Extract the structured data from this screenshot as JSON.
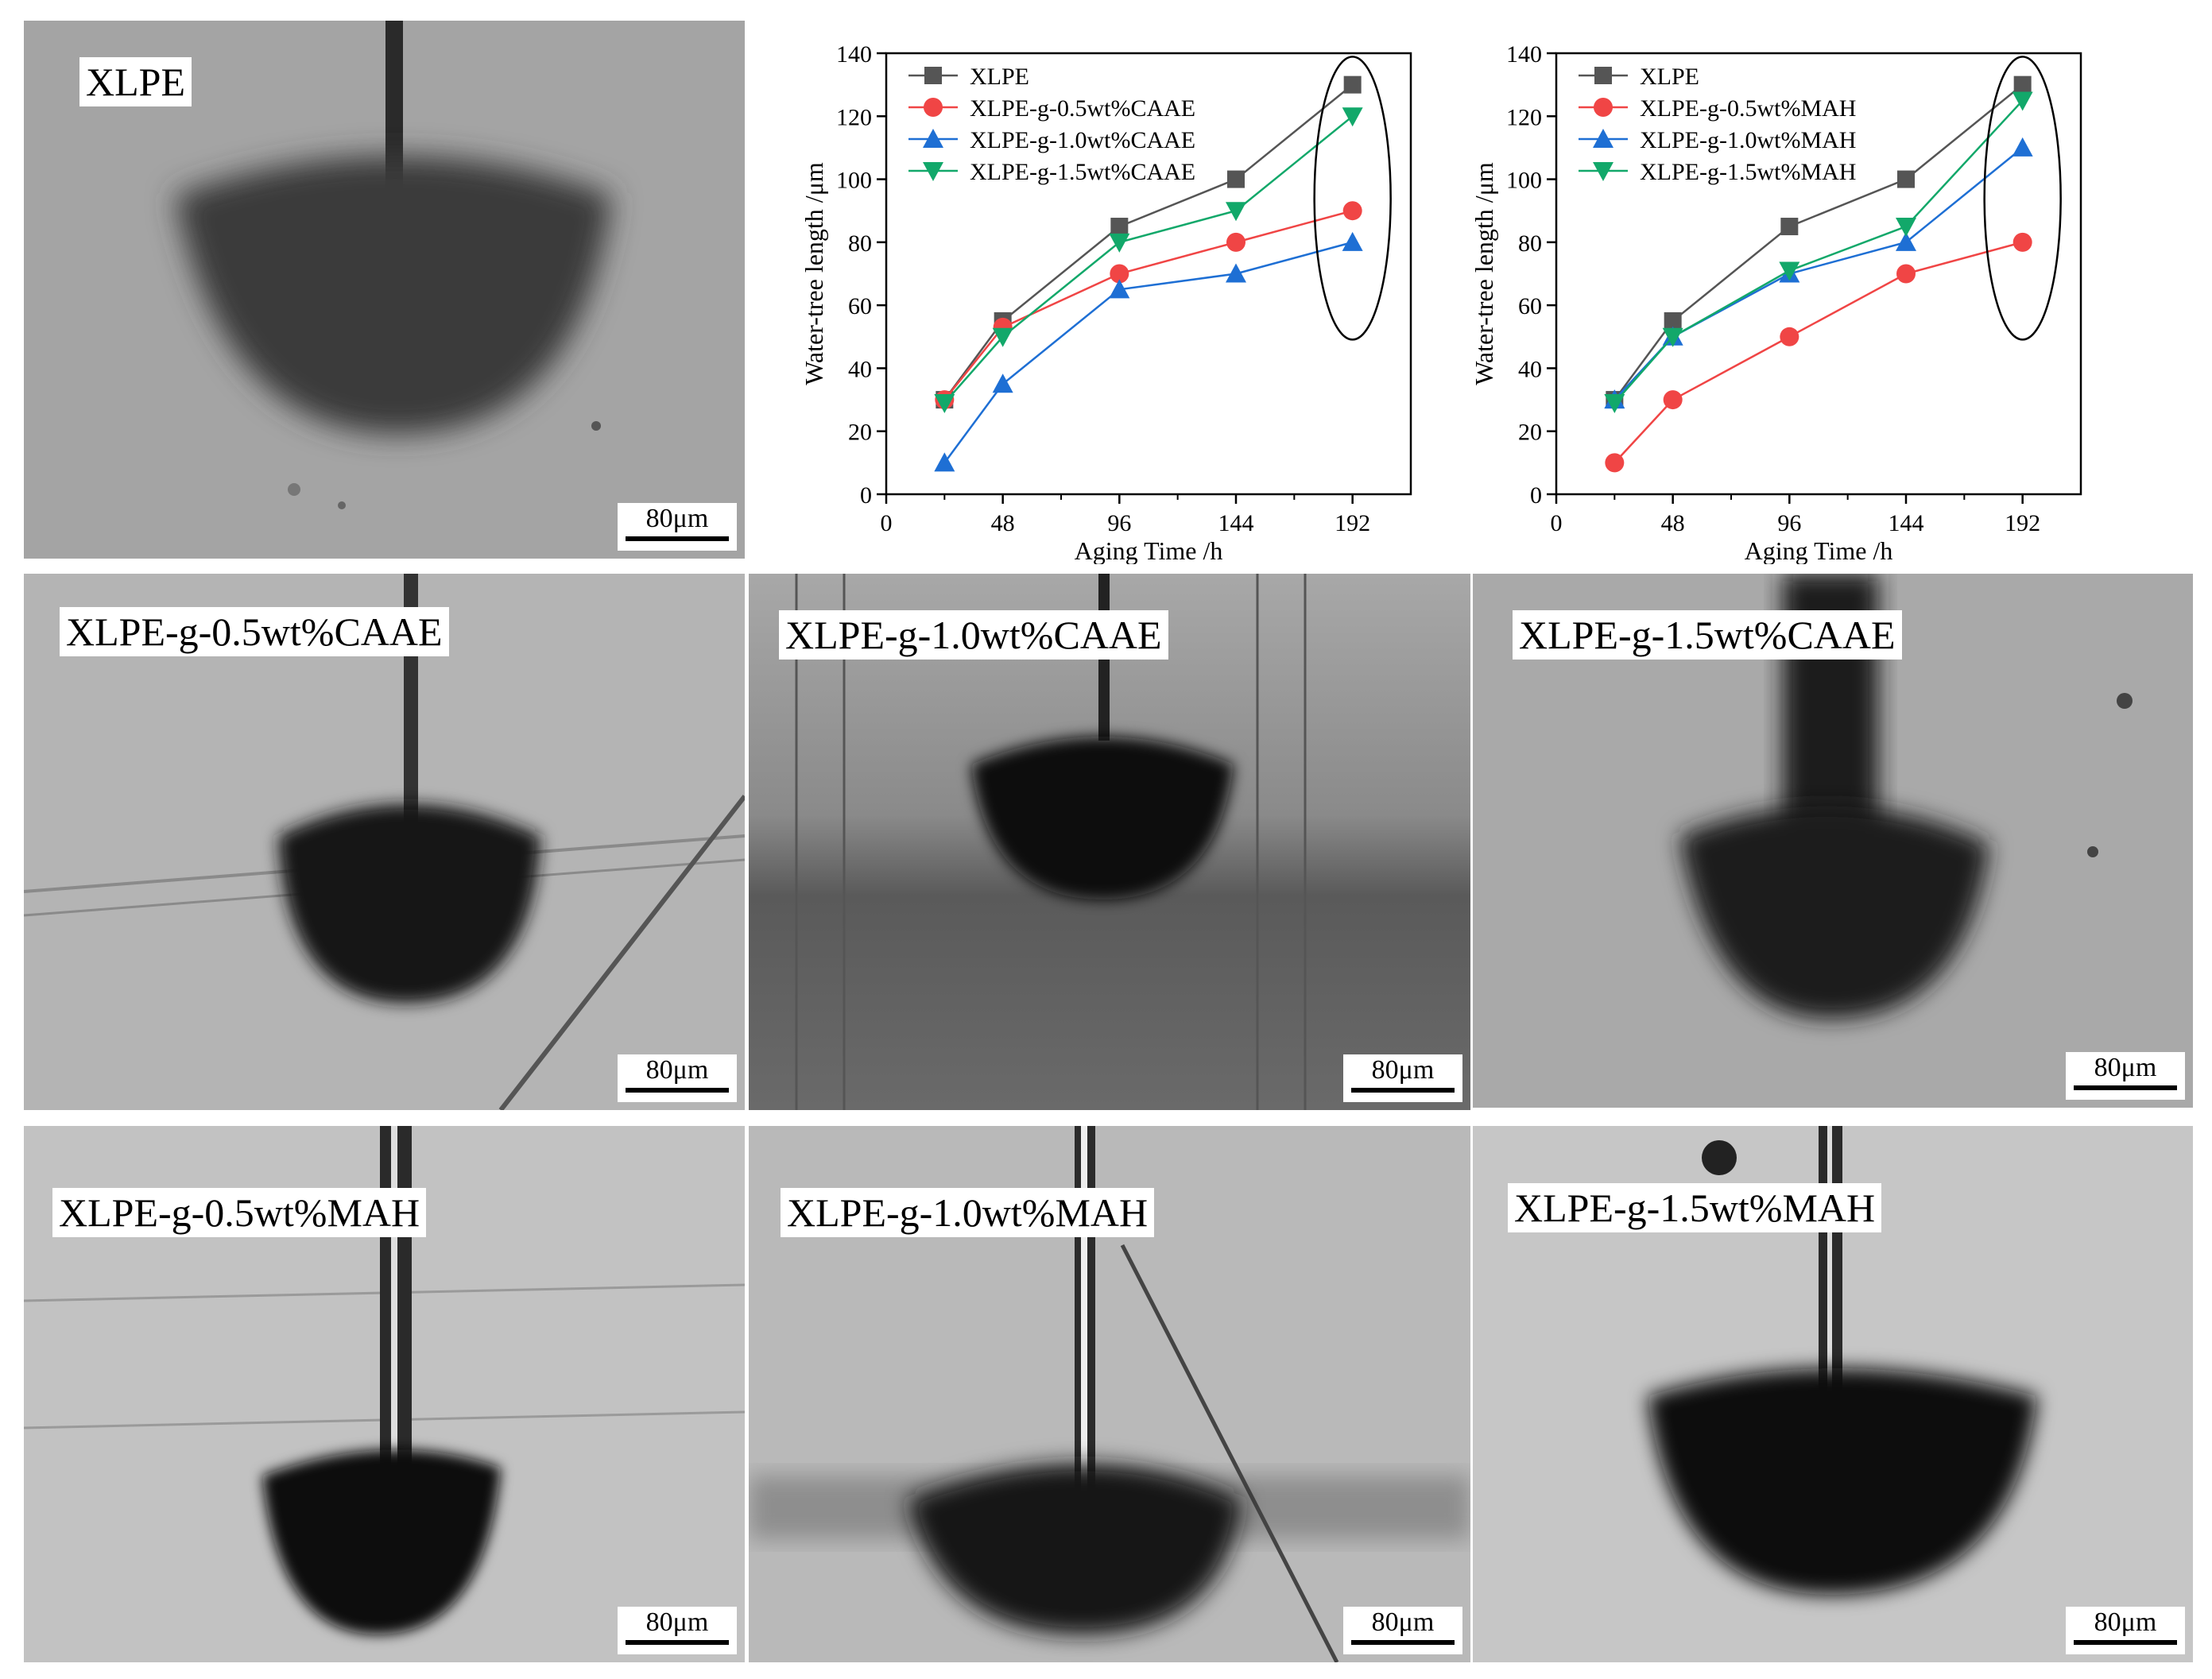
{
  "panels": [
    {
      "label": "XLPE",
      "scale": "80μm",
      "bg": "#a4a4a4"
    },
    {
      "label": "XLPE-g-0.5wt%CAAE",
      "scale": "80μm",
      "bg": "#b4b4b4"
    },
    {
      "label": "XLPE-g-1.0wt%CAAE",
      "scale": "80μm",
      "bg": "#7e7e7e"
    },
    {
      "label": "XLPE-g-1.5wt%CAAE",
      "scale": "80μm",
      "bg": "#a9a9a9"
    },
    {
      "label": "XLPE-g-0.5wt%MAH",
      "scale": "80μm",
      "bg": "#c2c2c2"
    },
    {
      "label": "XLPE-g-1.0wt%MAH",
      "scale": "80μm",
      "bg": "#b9b9b9"
    },
    {
      "label": "XLPE-g-1.5wt%MAH",
      "scale": "80μm",
      "bg": "#c6c6c6"
    }
  ],
  "chart_data": [
    {
      "type": "line",
      "xlabel": "Aging Time /h",
      "ylabel": "Water-tree length /μm",
      "xlim": [
        0,
        216
      ],
      "ylim": [
        0,
        140
      ],
      "xticks": [
        0,
        48,
        96,
        144,
        192
      ],
      "yticks": [
        0,
        20,
        40,
        60,
        80,
        100,
        120,
        140
      ],
      "x": [
        24,
        48,
        96,
        144,
        192
      ],
      "legend_position": "top-left",
      "grid": false,
      "series": [
        {
          "name": "XLPE",
          "values": [
            30,
            55,
            85,
            100,
            130
          ],
          "color": "#555555",
          "marker": "square"
        },
        {
          "name": "XLPE-g-0.5wt%CAAE",
          "values": [
            30,
            53,
            70,
            80,
            90
          ],
          "color": "#f04545",
          "marker": "circle"
        },
        {
          "name": "XLPE-g-1.0wt%CAAE",
          "values": [
            10,
            35,
            65,
            70,
            80
          ],
          "color": "#1e6fd4",
          "marker": "triangle-up"
        },
        {
          "name": "XLPE-g-1.5wt%CAAE",
          "values": [
            29,
            50,
            80,
            90,
            120
          ],
          "color": "#12a86a",
          "marker": "triangle-down"
        }
      ]
    },
    {
      "type": "line",
      "xlabel": "Aging Time /h",
      "ylabel": "Water-tree length /μm",
      "xlim": [
        0,
        216
      ],
      "ylim": [
        0,
        140
      ],
      "xticks": [
        0,
        48,
        96,
        144,
        192
      ],
      "yticks": [
        0,
        20,
        40,
        60,
        80,
        100,
        120,
        140
      ],
      "x": [
        24,
        48,
        96,
        144,
        192
      ],
      "legend_position": "top-left",
      "grid": false,
      "series": [
        {
          "name": "XLPE",
          "values": [
            30,
            55,
            85,
            100,
            130
          ],
          "color": "#555555",
          "marker": "square"
        },
        {
          "name": "XLPE-g-0.5wt%MAH",
          "values": [
            10,
            30,
            50,
            70,
            80
          ],
          "color": "#f04545",
          "marker": "circle"
        },
        {
          "name": "XLPE-g-1.0wt%MAH",
          "values": [
            30,
            50,
            70,
            80,
            110
          ],
          "color": "#1e6fd4",
          "marker": "triangle-up"
        },
        {
          "name": "XLPE-g-1.5wt%MAH",
          "values": [
            29,
            50,
            71,
            85,
            125
          ],
          "color": "#12a86a",
          "marker": "triangle-down"
        }
      ]
    }
  ]
}
